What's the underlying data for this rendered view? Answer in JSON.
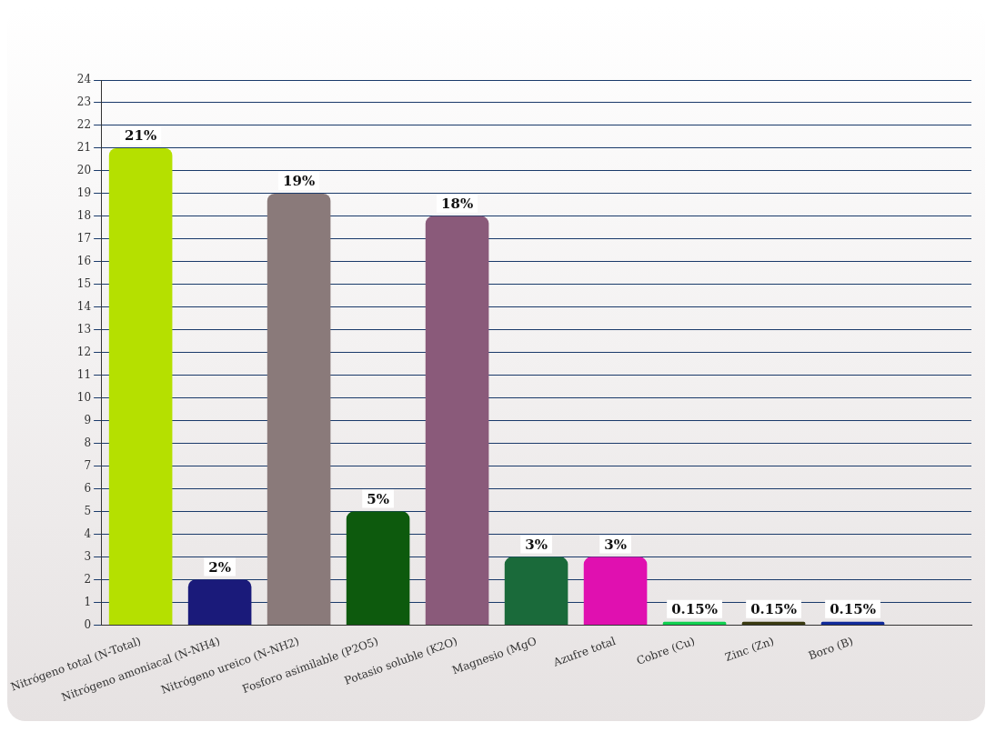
{
  "chart_data": {
    "type": "bar",
    "categories": [
      "Nitrógeno total (N-Total)",
      "Nitrógeno amoniacal (N-NH4)",
      "Nitrógeno ureico (N-NH2)",
      "Fosforo asimilable (P2O5)",
      "Potasio soluble (K2O)",
      "Magnesio (MgO",
      "Azufre total",
      "Cobre (Cu)",
      "Zinc (Zn)",
      "Boro (B)",
      null
    ],
    "values": [
      21,
      2,
      19,
      5,
      18,
      3,
      3,
      0.15,
      0.15,
      0.15,
      null
    ],
    "colors": [
      "#b5e000",
      "#1a1a7a",
      "#8a7a7a",
      "#0d5a0d",
      "#8a5a7a",
      "#1a6a3a",
      "#e010b0",
      "#10d050",
      "#3a3a10",
      "#102a9a",
      "#000000"
    ],
    "value_labels": [
      "21%",
      "2%",
      "19%",
      "5%",
      "18%",
      "3%",
      "3%",
      "0.15%",
      "0.15%",
      "0.15%",
      null
    ],
    "ylim": [
      0,
      24
    ],
    "yticks": [
      0,
      1,
      2,
      3,
      4,
      5,
      6,
      7,
      8,
      9,
      10,
      11,
      12,
      13,
      14,
      15,
      16,
      17,
      18,
      19,
      20,
      21,
      22,
      23,
      24
    ],
    "grid": "y",
    "legend": false
  }
}
